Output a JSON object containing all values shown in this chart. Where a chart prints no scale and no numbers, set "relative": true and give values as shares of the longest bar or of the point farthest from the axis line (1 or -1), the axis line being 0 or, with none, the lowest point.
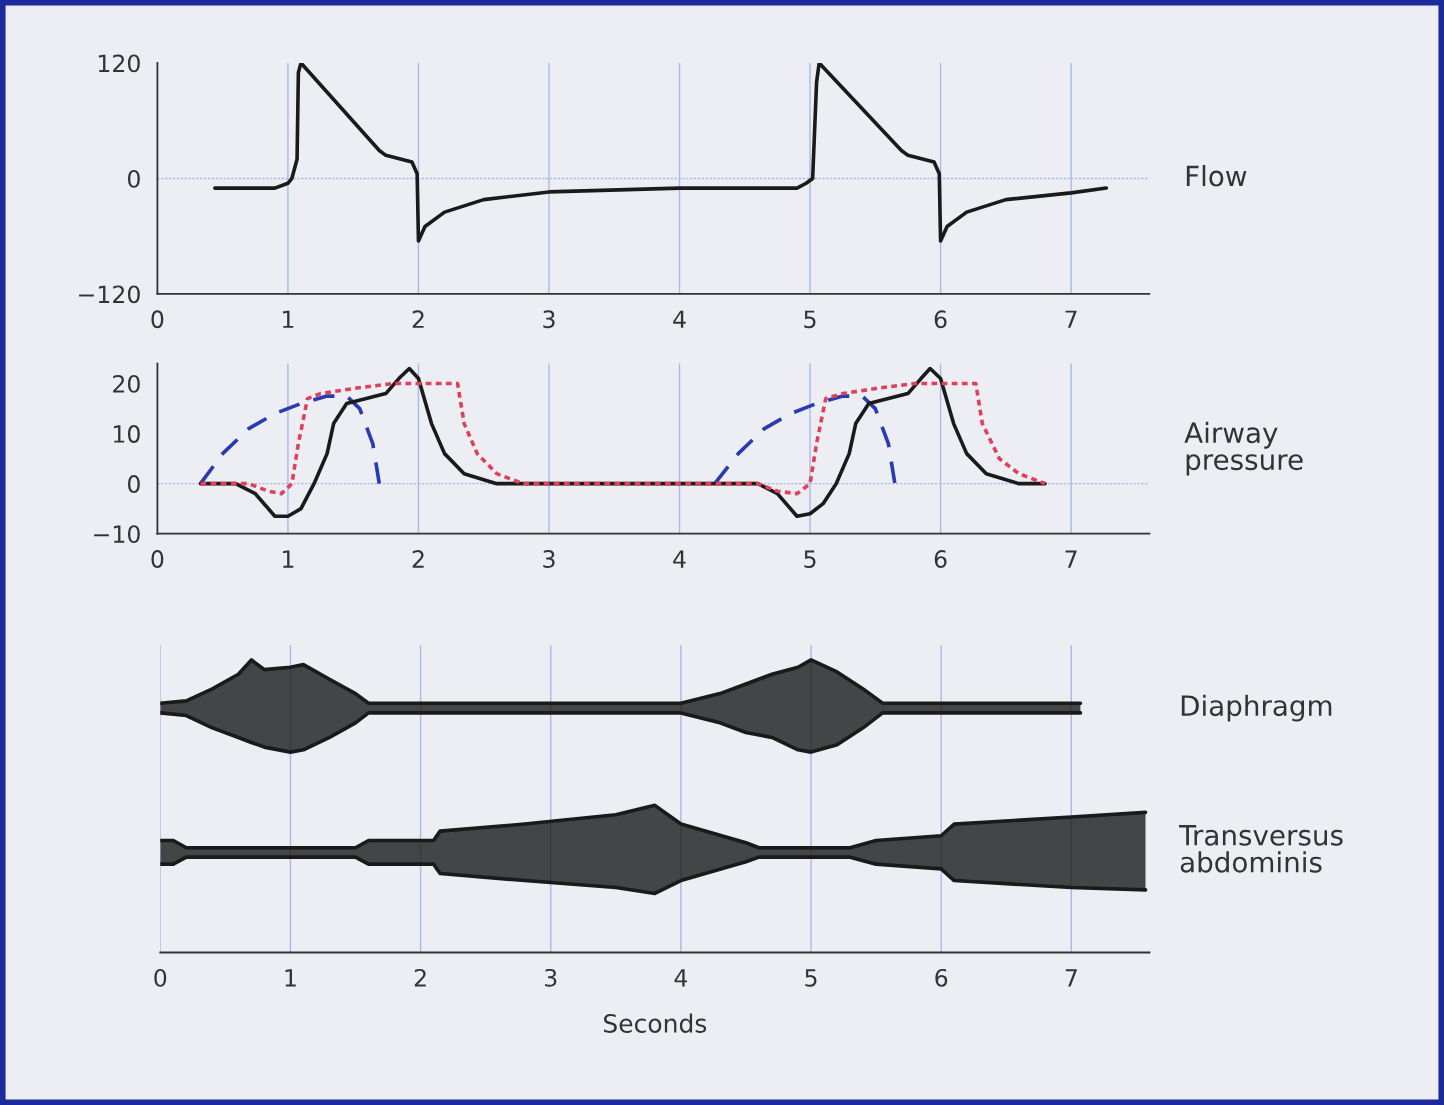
{
  "chart_data": [
    {
      "type": "line",
      "ylabel": "Flow",
      "xlim": [
        0,
        7.6
      ],
      "xticks": [
        0,
        1,
        2,
        3,
        4,
        5,
        6,
        7
      ],
      "ylim": [
        -120,
        120
      ],
      "yticks": [
        {
          "value": -120,
          "label": "−120"
        },
        0,
        120
      ],
      "grid": "x",
      "legend": false,
      "ref_lines": [
        {
          "axis": "y",
          "value": 0,
          "color": "#a8b8e8",
          "line_style": "dotted"
        }
      ],
      "series": [
        {
          "color": "#1a1a1a",
          "line_style": "solid",
          "x": [
            0.44,
            0.9,
            1.0,
            1.03,
            1.07,
            1.08,
            1.1,
            1.7,
            1.75,
            1.95,
            1.99,
            2.0,
            2.05,
            2.2,
            2.5,
            3.0,
            4.0,
            4.9,
            4.97,
            5.02,
            5.05,
            5.07,
            5.7,
            5.75,
            5.95,
            5.99,
            6.0,
            6.05,
            6.2,
            6.5,
            7.0,
            7.27
          ],
          "values": [
            -10,
            -10,
            -5,
            0,
            20,
            110,
            120,
            29,
            24,
            17,
            5,
            -65,
            -50,
            -35,
            -22,
            -14,
            -10,
            -10,
            -5,
            0,
            100,
            120,
            29,
            24,
            17,
            5,
            -65,
            -50,
            -35,
            -22,
            -15,
            -10
          ]
        }
      ]
    },
    {
      "type": "line",
      "ylabel": "Airway\npressure",
      "xlim": [
        0,
        7.6
      ],
      "xticks": [
        0,
        1,
        2,
        3,
        4,
        5,
        6,
        7
      ],
      "ylim": [
        -10,
        24
      ],
      "yticks": [
        {
          "value": -10,
          "label": "−10"
        },
        0,
        10,
        20
      ],
      "grid": "x",
      "legend": false,
      "ref_lines": [
        {
          "axis": "y",
          "value": 0,
          "color": "#a8b8e8",
          "line_style": "dotted"
        }
      ],
      "series": [
        {
          "color": "#2a3ab0",
          "line_style": "dashed",
          "x": [
            0.33,
            0.5,
            0.7,
            0.9,
            1.1,
            1.3,
            1.45,
            1.55,
            1.65,
            1.7,
            3.0,
            4.27,
            4.45,
            4.65,
            4.85,
            5.05,
            5.25,
            5.4,
            5.5,
            5.6,
            5.65
          ],
          "values": [
            0,
            6,
            11,
            14,
            16,
            17.5,
            17.5,
            15,
            8,
            0,
            null,
            0,
            6,
            11,
            14,
            16,
            17.5,
            17.5,
            15,
            8,
            0
          ]
        },
        {
          "color": "#e0405a",
          "line_style": "dotted",
          "x": [
            0.33,
            0.7,
            0.85,
            0.95,
            1.03,
            1.08,
            1.15,
            1.25,
            1.5,
            1.8,
            2.3,
            2.35,
            2.45,
            2.6,
            2.8,
            4.6,
            4.75,
            4.9,
            5.0,
            5.05,
            5.12,
            5.25,
            5.5,
            5.8,
            6.27,
            6.32,
            6.45,
            6.6,
            6.8
          ],
          "values": [
            0,
            0,
            -1.5,
            -2,
            0,
            8,
            17,
            18,
            19,
            20,
            20,
            12,
            6,
            2,
            0,
            0,
            -1.5,
            -2,
            0,
            8,
            17,
            18,
            19,
            20,
            20,
            12,
            5,
            2,
            0
          ]
        },
        {
          "color": "#1a1a1a",
          "line_style": "solid",
          "x": [
            0.33,
            0.6,
            0.75,
            0.9,
            1.0,
            1.1,
            1.2,
            1.3,
            1.35,
            1.45,
            1.6,
            1.75,
            1.85,
            1.93,
            2.0,
            2.1,
            2.2,
            2.35,
            2.6,
            4.6,
            4.75,
            4.9,
            5.0,
            5.1,
            5.2,
            5.3,
            5.35,
            5.45,
            5.6,
            5.75,
            5.85,
            5.92,
            6.0,
            6.1,
            6.2,
            6.35,
            6.6,
            6.8
          ],
          "values": [
            0,
            0,
            -2,
            -6.5,
            -6.5,
            -5,
            0,
            6,
            12,
            16,
            17,
            18,
            21,
            23,
            21,
            12,
            6,
            2,
            0,
            0,
            -2,
            -6.5,
            -6,
            -4,
            0,
            6,
            12,
            16,
            17,
            18,
            21,
            23,
            21,
            12,
            6,
            2,
            0,
            0
          ]
        }
      ]
    },
    {
      "type": "line",
      "relative": true,
      "xlabel": "Seconds",
      "xlim": [
        0,
        7.6
      ],
      "xticks": [
        0,
        1,
        2,
        3,
        4,
        5,
        6,
        7
      ],
      "grid": "x",
      "tick_labels": "x",
      "legend": false,
      "series": [
        {
          "name": "Diaphragm",
          "color": "#1a1a1a",
          "x": [
            0,
            0.2,
            0.4,
            0.6,
            0.7,
            0.8,
            1.0,
            1.1,
            1.3,
            1.5,
            1.6,
            4.0,
            4.3,
            4.5,
            4.7,
            4.9,
            5.0,
            5.2,
            5.4,
            5.55,
            7.07
          ],
          "values": [
            0.852,
            0.86,
            0.901,
            0.951,
            1.0,
            0.967,
            0.975,
            0.984,
            0.934,
            0.885,
            0.852,
            0.852,
            0.885,
            0.918,
            0.951,
            0.975,
            1.0,
            0.959,
            0.901,
            0.852,
            0.852
          ]
        },
        {
          "color": "#1a1a1a",
          "x": [
            0,
            0.2,
            0.4,
            0.6,
            0.7,
            0.8,
            1.0,
            1.1,
            1.3,
            1.5,
            1.6,
            4.0,
            4.3,
            4.5,
            4.7,
            4.9,
            5.0,
            5.2,
            5.4,
            5.55,
            7.07
          ],
          "values": [
            0.819,
            0.81,
            0.768,
            0.735,
            0.718,
            0.702,
            0.685,
            0.693,
            0.735,
            0.785,
            0.819,
            0.819,
            0.785,
            0.752,
            0.735,
            0.693,
            0.685,
            0.71,
            0.768,
            0.819,
            0.819
          ]
        },
        {
          "name": "Transversus\nabdominis",
          "color": "#1a1a1a",
          "x": [
            0,
            0.1,
            0.2,
            1.5,
            1.6,
            2.1,
            2.15,
            2.8,
            3.5,
            3.8,
            4.0,
            4.5,
            4.6,
            5.3,
            5.5,
            6.0,
            6.1,
            7.0,
            7.57
          ],
          "values": [
            0.383,
            0.383,
            0.358,
            0.358,
            0.383,
            0.383,
            0.415,
            0.439,
            0.471,
            0.503,
            0.439,
            0.375,
            0.358,
            0.358,
            0.383,
            0.399,
            0.439,
            0.463,
            0.479
          ]
        },
        {
          "color": "#1a1a1a",
          "x": [
            0,
            0.1,
            0.2,
            1.5,
            1.6,
            2.1,
            2.15,
            2.8,
            3.5,
            3.8,
            4.0,
            4.5,
            4.6,
            5.3,
            5.5,
            6.0,
            6.1,
            7.0,
            7.57
          ],
          "values": [
            0.302,
            0.302,
            0.326,
            0.326,
            0.302,
            0.302,
            0.27,
            0.246,
            0.222,
            0.202,
            0.246,
            0.31,
            0.326,
            0.326,
            0.302,
            0.286,
            0.246,
            0.222,
            0.214
          ]
        }
      ]
    }
  ]
}
